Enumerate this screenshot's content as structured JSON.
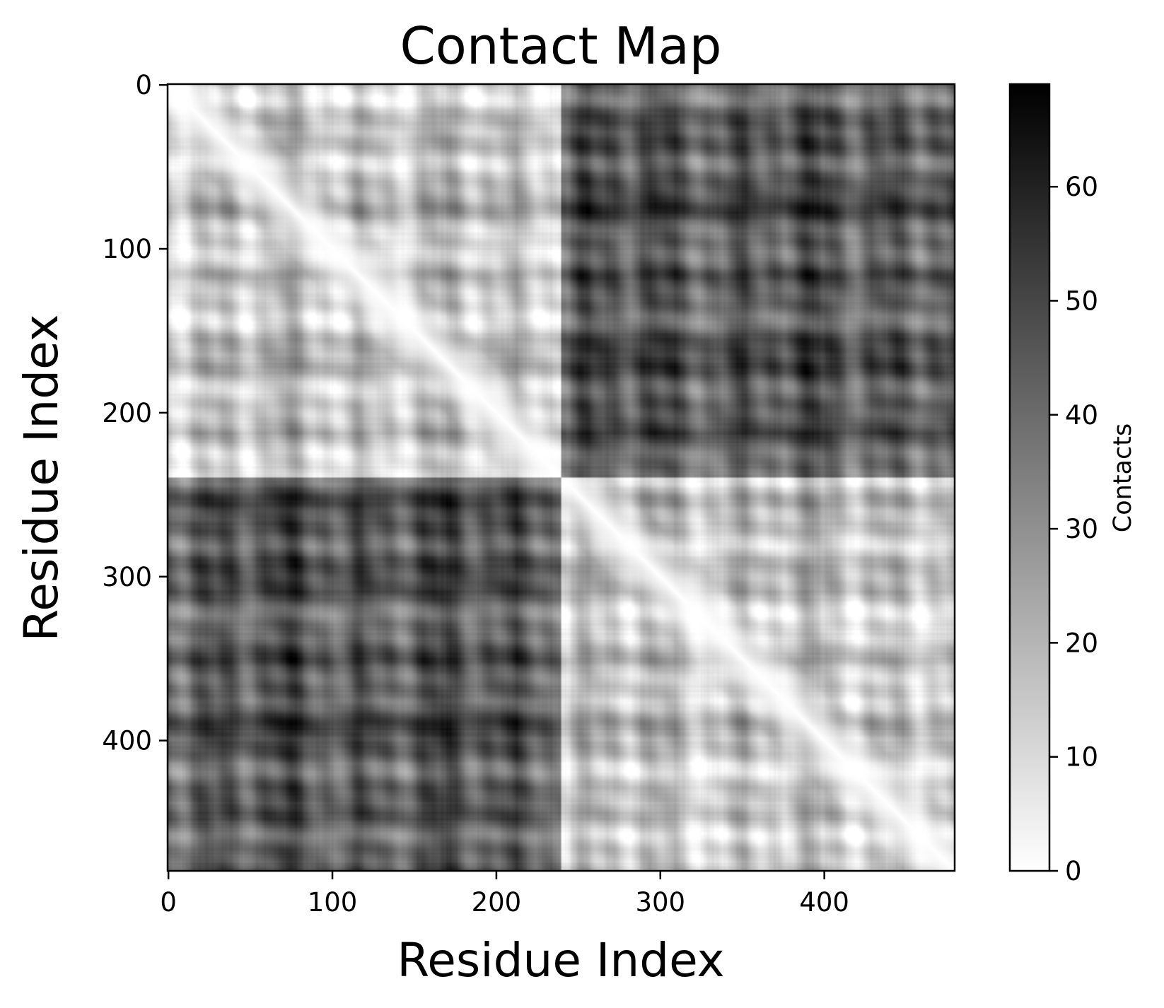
{
  "chart_data": {
    "type": "heatmap",
    "title": "Contact Map",
    "xlabel": "Residue Index",
    "ylabel": "Residue Index",
    "colorbar_label": "Contacts",
    "colormap": "gray_r",
    "colormap_colors": {
      "low": "#ffffff",
      "high": "#000000"
    },
    "n_residues": 480,
    "xlim": [
      0,
      479
    ],
    "ylim": [
      479,
      0
    ],
    "y_axis_inverted": true,
    "xticks": [
      0,
      100,
      200,
      300,
      400
    ],
    "yticks": [
      0,
      100,
      200,
      300,
      400
    ],
    "xtick_labels": [
      "0",
      "100",
      "200",
      "300",
      "400"
    ],
    "ytick_labels": [
      "0",
      "100",
      "200",
      "300",
      "400"
    ],
    "value_range": [
      0,
      69
    ],
    "colorbar_ticks": [
      0,
      10,
      20,
      30,
      40,
      50,
      60
    ],
    "colorbar_tick_labels": [
      "0",
      "10",
      "20",
      "30",
      "40",
      "50",
      "60"
    ],
    "block_boundary": 240,
    "blocks": [
      {
        "rows": [
          0,
          239
        ],
        "cols": [
          0,
          239
        ],
        "mean_contacts": 16,
        "description": "light intra-domain block"
      },
      {
        "rows": [
          0,
          239
        ],
        "cols": [
          240,
          479
        ],
        "mean_contacts": 45,
        "description": "dark inter-domain block"
      },
      {
        "rows": [
          240,
          479
        ],
        "cols": [
          0,
          239
        ],
        "mean_contacts": 45,
        "description": "dark inter-domain block"
      },
      {
        "rows": [
          240,
          479
        ],
        "cols": [
          240,
          479
        ],
        "mean_contacts": 16,
        "description": "light intra-domain block"
      }
    ],
    "diagonal_value": 0,
    "grid": false
  }
}
